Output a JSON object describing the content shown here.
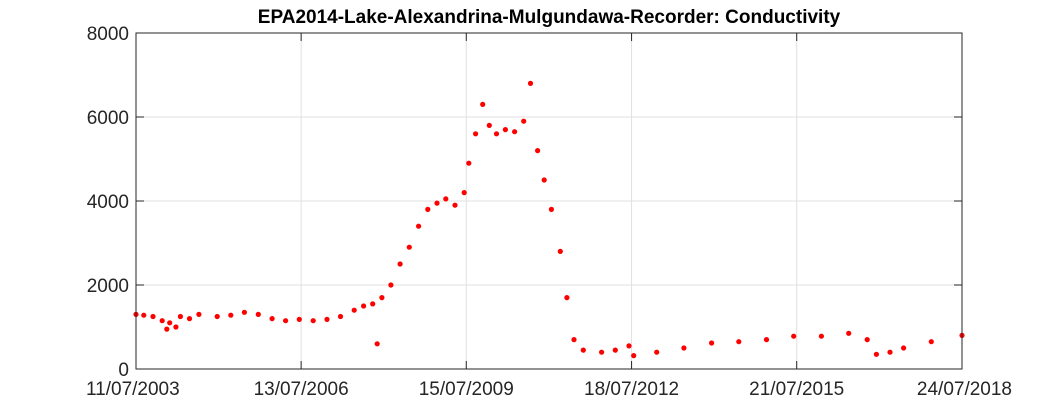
{
  "chart_data": {
    "type": "scatter",
    "title": "EPA2014-Lake-Alexandrina-Mulgundawa-Recorder: Conductivity",
    "xlabel": "",
    "ylabel": "",
    "x_range": [
      "2003-07-11",
      "2018-07-24"
    ],
    "ylim": [
      0,
      8000
    ],
    "x_ticks": [
      "11/07/2003",
      "13/07/2006",
      "15/07/2009",
      "18/07/2012",
      "21/07/2015",
      "24/07/2018"
    ],
    "y_ticks": [
      "0",
      "2000",
      "4000",
      "6000",
      "8000"
    ],
    "grid": true,
    "marker_color": "#ff0000",
    "series": [
      {
        "points": [
          [
            "2003-07-11",
            1300
          ],
          [
            "2003-09-01",
            1280
          ],
          [
            "2003-11-01",
            1250
          ],
          [
            "2004-01-01",
            1150
          ],
          [
            "2004-02-01",
            950
          ],
          [
            "2004-02-20",
            1100
          ],
          [
            "2004-04-01",
            1000
          ],
          [
            "2004-05-01",
            1250
          ],
          [
            "2004-07-01",
            1200
          ],
          [
            "2004-09-01",
            1300
          ],
          [
            "2005-01-01",
            1250
          ],
          [
            "2005-04-01",
            1280
          ],
          [
            "2005-07-01",
            1350
          ],
          [
            "2005-10-01",
            1300
          ],
          [
            "2006-01-01",
            1200
          ],
          [
            "2006-04-01",
            1150
          ],
          [
            "2006-07-01",
            1180
          ],
          [
            "2006-10-01",
            1150
          ],
          [
            "2007-01-01",
            1180
          ],
          [
            "2007-04-01",
            1250
          ],
          [
            "2007-07-01",
            1400
          ],
          [
            "2007-09-01",
            1500
          ],
          [
            "2007-11-01",
            1550
          ],
          [
            "2007-12-01",
            600
          ],
          [
            "2008-01-01",
            1700
          ],
          [
            "2008-03-01",
            2000
          ],
          [
            "2008-05-01",
            2500
          ],
          [
            "2008-07-01",
            2900
          ],
          [
            "2008-09-01",
            3400
          ],
          [
            "2008-11-01",
            3800
          ],
          [
            "2009-01-01",
            3950
          ],
          [
            "2009-03-01",
            4050
          ],
          [
            "2009-05-01",
            3900
          ],
          [
            "2009-07-01",
            4200
          ],
          [
            "2009-08-01",
            4900
          ],
          [
            "2009-09-15",
            5600
          ],
          [
            "2009-11-01",
            6300
          ],
          [
            "2009-12-15",
            5800
          ],
          [
            "2010-02-01",
            5600
          ],
          [
            "2010-04-01",
            5700
          ],
          [
            "2010-06-01",
            5650
          ],
          [
            "2010-08-01",
            5900
          ],
          [
            "2010-09-15",
            6800
          ],
          [
            "2010-11-01",
            5200
          ],
          [
            "2010-12-15",
            4500
          ],
          [
            "2011-02-01",
            3800
          ],
          [
            "2011-04-01",
            2800
          ],
          [
            "2011-05-15",
            1700
          ],
          [
            "2011-07-01",
            700
          ],
          [
            "2011-09-01",
            450
          ],
          [
            "2012-01-01",
            400
          ],
          [
            "2012-04-01",
            450
          ],
          [
            "2012-07-01",
            550
          ],
          [
            "2012-08-01",
            320
          ],
          [
            "2013-01-01",
            400
          ],
          [
            "2013-07-01",
            500
          ],
          [
            "2014-01-01",
            620
          ],
          [
            "2014-07-01",
            650
          ],
          [
            "2015-01-01",
            700
          ],
          [
            "2015-07-01",
            780
          ],
          [
            "2016-01-01",
            780
          ],
          [
            "2016-07-01",
            850
          ],
          [
            "2016-11-01",
            700
          ],
          [
            "2017-01-01",
            350
          ],
          [
            "2017-04-01",
            400
          ],
          [
            "2017-07-01",
            500
          ],
          [
            "2018-01-01",
            650
          ],
          [
            "2018-07-24",
            800
          ]
        ]
      }
    ]
  }
}
